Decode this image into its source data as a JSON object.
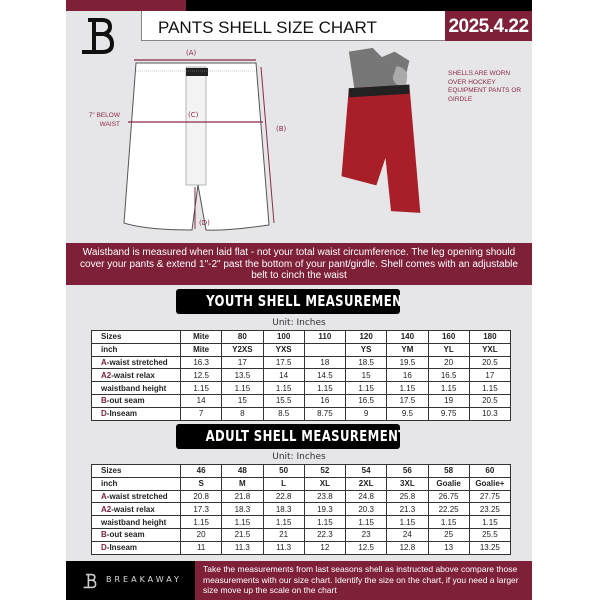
{
  "header": {
    "title": "PANTS SHELL SIZE CHART",
    "date": "2025.4.22"
  },
  "diagram": {
    "label_a": "(A)",
    "label_b": "(B)",
    "label_c": "(C)",
    "label_d": "(D)",
    "below_waist": "7\" BELOW WAIST",
    "note": "SHELLS ARE WORN OVER HOCKEY EQUIPMENT PANTS OR GIRDLE"
  },
  "banner": "Waistband is measured when laid flat - not your total waist circumference. The leg opening should cover your pants & extend 1\"-2\" past the bottom of your pant/girdle. Shell comes with an adjustable belt to cinch the waist",
  "youth": {
    "title": "YOUTH SHELL MEASUREMENTS",
    "unit": "Unit: Inches",
    "rows": [
      {
        "k": "",
        "l": "Sizes",
        "v": [
          "Mite",
          "80",
          "100",
          "110",
          "120",
          "140",
          "160",
          "180"
        ]
      },
      {
        "k": "",
        "l": "inch",
        "v": [
          "Mite",
          "Y2XS",
          "YXS",
          "",
          "YS",
          "YM",
          "YL",
          "YXL"
        ]
      },
      {
        "k": "A",
        "l": "-waist stretched",
        "v": [
          "16.3",
          "17",
          "17.5",
          "18",
          "18.5",
          "19.5",
          "20",
          "20.5"
        ]
      },
      {
        "k": "A2",
        "l": "-waist relax",
        "v": [
          "12.5",
          "13.5",
          "14",
          "14.5",
          "15",
          "16",
          "16.5",
          "17"
        ]
      },
      {
        "k": "",
        "l": "waistband height",
        "v": [
          "1.15",
          "1.15",
          "1.15",
          "1.15",
          "1.15",
          "1.15",
          "1.15",
          "1.15"
        ]
      },
      {
        "k": "B",
        "l": "-out seam",
        "v": [
          "14",
          "15",
          "15.5",
          "16",
          "16.5",
          "17.5",
          "19",
          "20.5"
        ]
      },
      {
        "k": "D",
        "l": "-Inseam",
        "v": [
          "7",
          "8",
          "8.5",
          "8.75",
          "9",
          "9.5",
          "9.75",
          "10.3"
        ]
      }
    ]
  },
  "adult": {
    "title": "ADULT SHELL MEASUREMENTS",
    "unit": "Unit: Inches",
    "rows": [
      {
        "k": "",
        "l": "Sizes",
        "v": [
          "46",
          "48",
          "50",
          "52",
          "54",
          "56",
          "58",
          "60"
        ]
      },
      {
        "k": "",
        "l": "inch",
        "v": [
          "S",
          "M",
          "L",
          "XL",
          "2XL",
          "3XL",
          "Goalie",
          "Goalie+"
        ]
      },
      {
        "k": "A",
        "l": "-waist stretched",
        "v": [
          "20.8",
          "21.8",
          "22.8",
          "23.8",
          "24.8",
          "25.8",
          "26.75",
          "27.75"
        ]
      },
      {
        "k": "A2",
        "l": "-waist relax",
        "v": [
          "17.3",
          "18.3",
          "18.3",
          "19.3",
          "20.3",
          "21.3",
          "22.25",
          "23.25"
        ]
      },
      {
        "k": "",
        "l": "waistband height",
        "v": [
          "1.15",
          "1.15",
          "1.15",
          "1.15",
          "1.15",
          "1.15",
          "1.15",
          "1.15"
        ]
      },
      {
        "k": "B",
        "l": "-out seam",
        "v": [
          "20",
          "21.5",
          "21",
          "22.3",
          "23",
          "24",
          "25",
          "25.5"
        ]
      },
      {
        "k": "D",
        "l": "-Inseam",
        "v": [
          "11",
          "11.3",
          "11.3",
          "12",
          "12.5",
          "12.8",
          "13",
          "13.25"
        ]
      }
    ]
  },
  "footer": {
    "brand": "BREAKAWAY",
    "text": "Take the measurements from last seasons shell as instructed above compare those measurements  with our size chart. Identify the size on the chart, if you need a larger size move up the scale on the chart"
  },
  "colors": {
    "accent": "#7f2039",
    "black": "#000000",
    "background": "#e6e6e8"
  }
}
